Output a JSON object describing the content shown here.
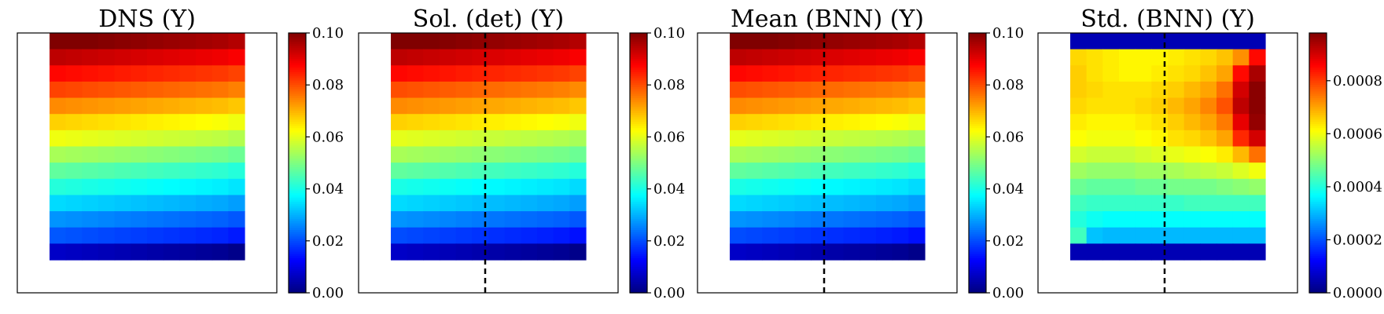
{
  "figure": {
    "colormap": "jet",
    "background_color": "#ffffff"
  },
  "chart_data": [
    {
      "type": "heatmap",
      "title": "DNS (Y)",
      "dashed_line": false,
      "colorbar": {
        "range": [
          0,
          0.1
        ],
        "ticks": [
          "0.00",
          "0.02",
          "0.04",
          "0.06",
          "0.08",
          "0.10"
        ]
      },
      "grid_shape": [
        14,
        12
      ],
      "row_values": [
        0.1,
        0.093,
        0.086,
        0.08,
        0.073,
        0.066,
        0.06,
        0.053,
        0.046,
        0.04,
        0.033,
        0.026,
        0.02,
        0.006
      ],
      "col_offsets": [
        0.001,
        0.0005,
        0,
        -0.0005,
        -0.001,
        -0.0015,
        -0.002,
        -0.0025,
        -0.003,
        -0.0035,
        -0.004,
        -0.005
      ]
    },
    {
      "type": "heatmap",
      "title": "Sol. (det) (Y)",
      "dashed_line": true,
      "colorbar": {
        "range": [
          0,
          0.1
        ],
        "ticks": [
          "0.00",
          "0.02",
          "0.04",
          "0.06",
          "0.08",
          "0.10"
        ]
      },
      "grid_shape": [
        14,
        12
      ],
      "row_values": [
        0.1,
        0.093,
        0.086,
        0.079,
        0.073,
        0.066,
        0.059,
        0.053,
        0.046,
        0.039,
        0.033,
        0.026,
        0.019,
        0.006
      ],
      "col_offsets": [
        0.001,
        0.0005,
        0,
        -0.0005,
        -0.001,
        -0.0015,
        -0.002,
        -0.0025,
        -0.003,
        -0.0035,
        -0.004,
        -0.005
      ]
    },
    {
      "type": "heatmap",
      "title": "Mean (BNN) (Y)",
      "dashed_line": true,
      "colorbar": {
        "range": [
          0,
          0.1
        ],
        "ticks": [
          "0.00",
          "0.02",
          "0.04",
          "0.06",
          "0.08",
          "0.10"
        ]
      },
      "grid_shape": [
        14,
        12
      ],
      "row_values": [
        0.1,
        0.093,
        0.086,
        0.079,
        0.073,
        0.066,
        0.059,
        0.053,
        0.046,
        0.039,
        0.033,
        0.026,
        0.019,
        0.006
      ],
      "col_offsets": [
        0.001,
        0.0005,
        0,
        -0.0005,
        -0.001,
        -0.0015,
        -0.002,
        -0.0025,
        -0.003,
        -0.0035,
        -0.004,
        -0.005
      ]
    },
    {
      "type": "heatmap",
      "title": "Std. (BNN) (Y)",
      "dashed_line": true,
      "colorbar": {
        "range": [
          0,
          0.00098
        ],
        "ticks": [
          "0.0000",
          "0.0002",
          "0.0004",
          "0.0006",
          "0.0008"
        ],
        "tick_values": [
          0,
          0.0002,
          0.0004,
          0.0006,
          0.0008
        ]
      },
      "grid_shape": [
        14,
        12
      ],
      "cells": [
        [
          5e-05,
          5e-05,
          5e-05,
          5e-05,
          5e-05,
          5e-05,
          5e-05,
          5e-05,
          5e-05,
          5e-05,
          5e-05,
          5e-05
        ],
        [
          0.00065,
          0.00064,
          0.00063,
          0.00062,
          0.00062,
          0.00062,
          0.00063,
          0.00064,
          0.00065,
          0.00067,
          0.00072,
          0.00085
        ],
        [
          0.00066,
          0.00064,
          0.00063,
          0.00062,
          0.00062,
          0.00063,
          0.00064,
          0.00065,
          0.00067,
          0.0007,
          0.00085,
          0.00094
        ],
        [
          0.00066,
          0.00065,
          0.00064,
          0.00064,
          0.00064,
          0.00065,
          0.00066,
          0.00068,
          0.0007,
          0.00075,
          0.0009,
          0.00097
        ],
        [
          0.00065,
          0.00064,
          0.00064,
          0.00064,
          0.00065,
          0.00066,
          0.00068,
          0.0007,
          0.00073,
          0.00078,
          0.00092,
          0.00097
        ],
        [
          0.00063,
          0.00062,
          0.00062,
          0.00062,
          0.00063,
          0.00064,
          0.00066,
          0.00068,
          0.0007,
          0.00074,
          0.00088,
          0.00096
        ],
        [
          0.00061,
          0.0006,
          0.0006,
          0.0006,
          0.00061,
          0.00062,
          0.00064,
          0.00065,
          0.00067,
          0.0007,
          0.00082,
          0.0009
        ],
        [
          0.00057,
          0.00056,
          0.00056,
          0.00056,
          0.00057,
          0.00058,
          0.00059,
          0.0006,
          0.00061,
          0.00063,
          0.00068,
          0.00075
        ],
        [
          0.00052,
          0.00051,
          0.00051,
          0.00051,
          0.00052,
          0.00052,
          0.00053,
          0.00054,
          0.00055,
          0.00056,
          0.00058,
          0.0006
        ],
        [
          0.00047,
          0.00046,
          0.00046,
          0.00046,
          0.00047,
          0.00047,
          0.00048,
          0.00048,
          0.00048,
          0.00049,
          0.0005,
          0.00051
        ],
        [
          0.00043,
          0.00042,
          0.00042,
          0.00042,
          0.00042,
          0.00042,
          0.00042,
          0.00043,
          0.00043,
          0.00043,
          0.00043,
          0.00043
        ],
        [
          0.0004,
          0.00038,
          0.00037,
          0.00037,
          0.00037,
          0.00037,
          0.00037,
          0.00037,
          0.00037,
          0.00037,
          0.00037,
          0.00037
        ],
        [
          0.00043,
          0.00031,
          0.0003,
          0.0003,
          0.0003,
          0.0003,
          0.0003,
          0.0003,
          0.0003,
          0.0003,
          0.0003,
          0.0003
        ],
        [
          5e-05,
          5e-05,
          5e-05,
          5e-05,
          5e-05,
          5e-05,
          5e-05,
          5e-05,
          5e-05,
          5e-05,
          5e-05,
          5e-05
        ]
      ]
    }
  ]
}
